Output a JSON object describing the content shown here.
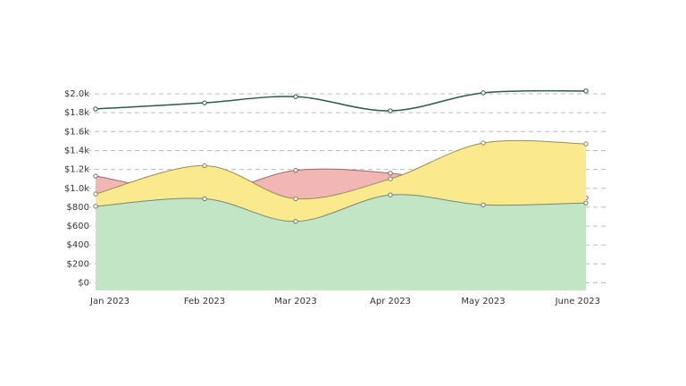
{
  "chart_data": {
    "type": "area",
    "categories": [
      "Jan 2023",
      "Feb 2023",
      "Mar 2023",
      "Apr 2023",
      "May 2023",
      "June 2023"
    ],
    "series": [
      {
        "color": "#f2b6b4",
        "values": [
          1130,
          950,
          1190,
          1160,
          1000,
          900
        ]
      },
      {
        "color": "#fbe98e",
        "values": [
          940,
          1240,
          890,
          1100,
          1480,
          1470
        ]
      },
      {
        "color": "#c2e5c6",
        "values": [
          810,
          890,
          650,
          930,
          825,
          845
        ]
      },
      {
        "type": "line",
        "color": "#2d5a4a",
        "values": [
          1840,
          1905,
          1970,
          1820,
          2010,
          2030
        ]
      }
    ],
    "ylim": [
      -80,
      2000
    ],
    "yticks": [
      {
        "value": 0,
        "label": "$0"
      },
      {
        "value": 200,
        "label": "$200"
      },
      {
        "value": 400,
        "label": "$400"
      },
      {
        "value": 600,
        "label": "$600"
      },
      {
        "value": 800,
        "label": "$800"
      },
      {
        "value": 1000,
        "label": "$1.0k"
      },
      {
        "value": 1200,
        "label": "$1.2k"
      },
      {
        "value": 1400,
        "label": "$1.4k"
      },
      {
        "value": 1600,
        "label": "$1.6k"
      },
      {
        "value": 1800,
        "label": "$1.8k"
      },
      {
        "value": 2000,
        "label": "$2.0k"
      }
    ],
    "grid": true
  }
}
